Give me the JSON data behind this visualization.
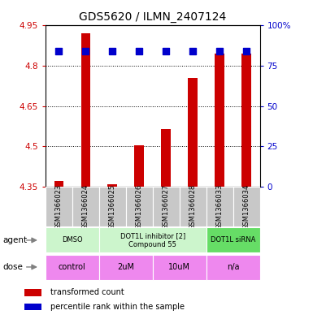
{
  "title": "GDS5620 / ILMN_2407124",
  "samples": [
    "GSM1366023",
    "GSM1366024",
    "GSM1366025",
    "GSM1366026",
    "GSM1366027",
    "GSM1366028",
    "GSM1366033",
    "GSM1366034"
  ],
  "transformed_counts": [
    4.37,
    4.92,
    4.36,
    4.505,
    4.565,
    4.755,
    4.845,
    4.845
  ],
  "percentile_y": [
    4.855,
    4.855,
    4.855,
    4.855,
    4.855,
    4.855,
    4.855,
    4.855
  ],
  "ylim": [
    4.35,
    4.95
  ],
  "yticks": [
    4.35,
    4.5,
    4.65,
    4.8,
    4.95
  ],
  "ytick_labels": [
    "4.35",
    "4.5",
    "4.65",
    "4.8",
    "4.95"
  ],
  "right_ytick_vals": [
    4.35,
    4.5,
    4.65,
    4.8,
    4.95
  ],
  "right_ytick_labels": [
    "0",
    "25",
    "50",
    "75",
    "100%"
  ],
  "bar_color": "#cc0000",
  "dot_color": "#0000cc",
  "bar_width": 0.35,
  "dot_size": 28,
  "left_tick_color": "#cc0000",
  "right_tick_color": "#0000cc",
  "sample_bg_color": "#c8c8c8",
  "agent_groups": [
    {
      "label": "DMSO",
      "start": 0,
      "end": 2,
      "color": "#ccf5cc"
    },
    {
      "label": "DOT1L inhibitor [2]\nCompound 55",
      "start": 2,
      "end": 6,
      "color": "#ccf5cc"
    },
    {
      "label": "DOT1L siRNA",
      "start": 6,
      "end": 8,
      "color": "#66dd66"
    }
  ],
  "dose_groups": [
    {
      "label": "control",
      "start": 0,
      "end": 2,
      "color": "#ee88ee"
    },
    {
      "label": "2uM",
      "start": 2,
      "end": 4,
      "color": "#ee88ee"
    },
    {
      "label": "10uM",
      "start": 4,
      "end": 6,
      "color": "#ee88ee"
    },
    {
      "label": "n/a",
      "start": 6,
      "end": 8,
      "color": "#ee88ee"
    }
  ],
  "legend_items": [
    {
      "label": "transformed count",
      "color": "#cc0000"
    },
    {
      "label": "percentile rank within the sample",
      "color": "#0000cc"
    }
  ]
}
